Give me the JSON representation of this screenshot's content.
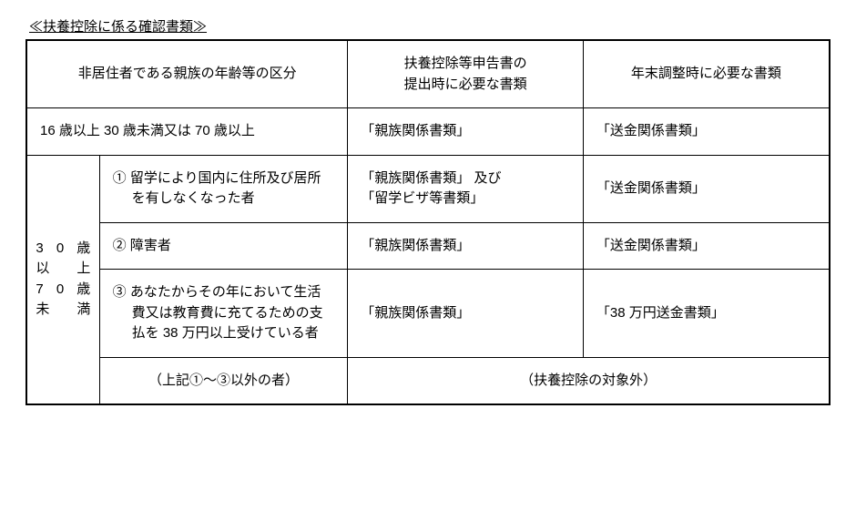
{
  "title": "≪扶養控除に係る確認書類≫",
  "header": {
    "col1": "非居住者である親族の年齢等の区分",
    "col2": "扶養控除等申告書の\n提出時に必要な書類",
    "col3": "年末調整時に必要な書類"
  },
  "row_age1": {
    "label": "16 歳以上 30 歳未満又は 70 歳以上",
    "doc1": "「親族関係書類」",
    "doc2": "「送金関係書類」"
  },
  "age_group_label_lines": [
    "30 歳",
    "以　上",
    "70 歳",
    "未　満"
  ],
  "sub1": {
    "label": "①  留学により国内に住所及び居所を有しなくなった者",
    "doc1": "「親族関係書類」 及び\n「留学ビザ等書類」",
    "doc2": "「送金関係書類」"
  },
  "sub2": {
    "label": "②  障害者",
    "doc1": "「親族関係書類」",
    "doc2": "「送金関係書類」"
  },
  "sub3": {
    "label": "③  あなたからその年において生活費又は教育費に充てるための支払を 38 万円以上受けている者",
    "doc1": "「親族関係書類」",
    "doc2": "「38 万円送金書類」"
  },
  "sub4": {
    "label": "（上記①～③以外の者）",
    "note": "（扶養控除の対象外）"
  },
  "style": {
    "font_size_pt": 11,
    "border_color": "#000000",
    "background": "#ffffff"
  }
}
